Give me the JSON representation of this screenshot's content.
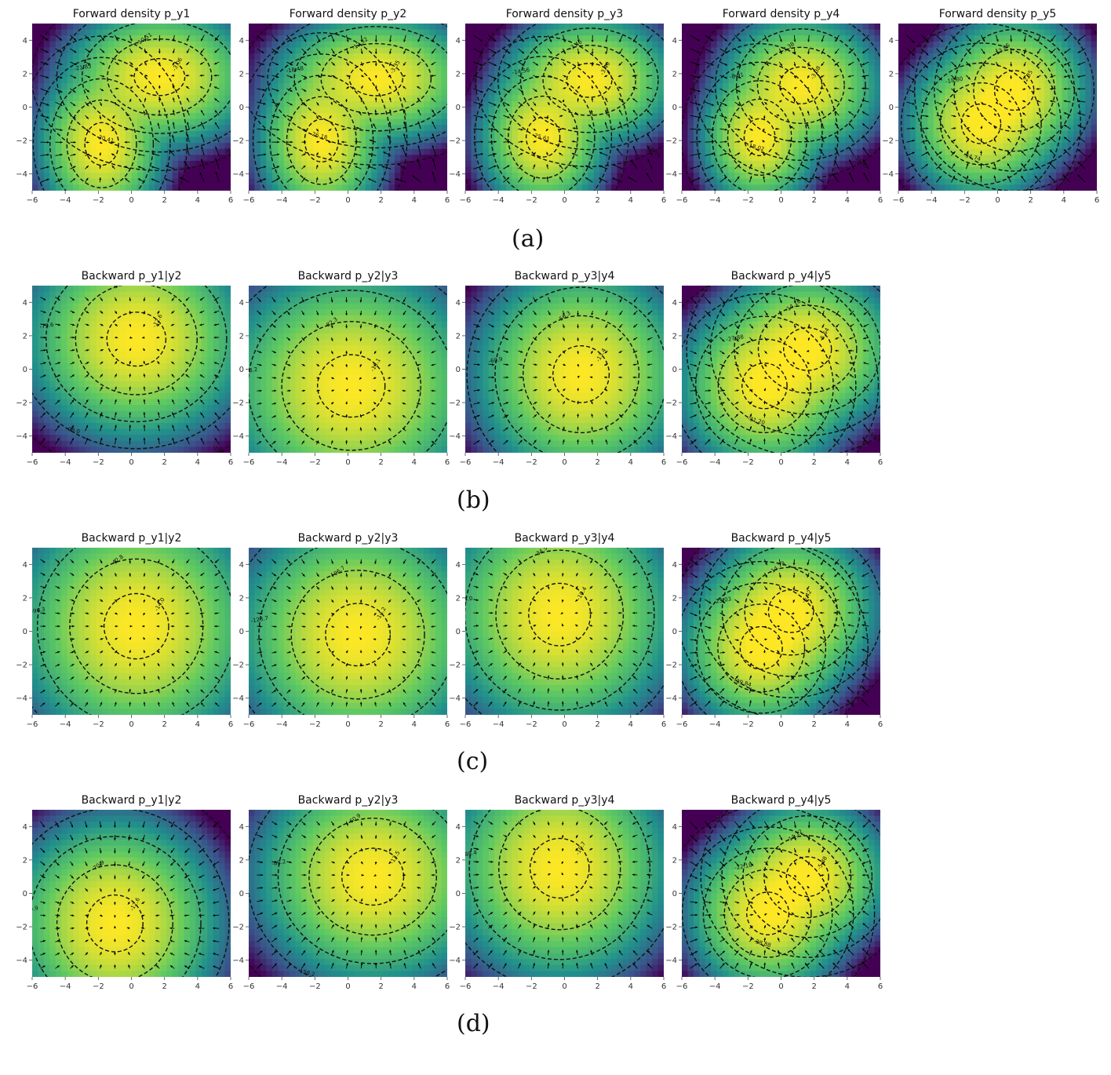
{
  "rows": [
    {
      "caption": "(a)",
      "titles": [
        "Forward density p_y1",
        "Forward density p_y2",
        "Forward density p_y3",
        "Forward density p_y4",
        "Forward density p_y5"
      ]
    },
    {
      "caption": "(b)",
      "titles": [
        "Backward p_y1|y2",
        "Backward p_y2|y3",
        "Backward p_y3|y4",
        "Backward p_y4|y5"
      ]
    },
    {
      "caption": "(c)",
      "titles": [
        "Backward p_y1|y2",
        "Backward p_y2|y3",
        "Backward p_y3|y4",
        "Backward p_y4|y5"
      ]
    },
    {
      "caption": "(d)",
      "titles": [
        "Backward p_y1|y2",
        "Backward p_y2|y3",
        "Backward p_y3|y4",
        "Backward p_y4|y5"
      ]
    }
  ],
  "chart_data": [
    {
      "type": "heatmap",
      "title": "Forward density p_y1",
      "xlim": [
        -6,
        6
      ],
      "ylim": [
        -5,
        5
      ],
      "x_ticks": [
        -6,
        -4,
        -2,
        0,
        2,
        4,
        6
      ],
      "y_ticks": [
        -4,
        -2,
        0,
        2,
        4
      ],
      "modes": [
        {
          "center": [
            1.7,
            1.8
          ],
          "spread": [
            1.8,
            1.3
          ]
        },
        {
          "center": [
            -1.8,
            -2.2
          ],
          "spread": [
            1.2,
            1.5
          ]
        }
      ],
      "contour_labels": [
        "-3.06",
        "-10.51",
        "-21.85",
        "-30.41",
        "-39.34",
        "-46.30",
        "-56.98"
      ],
      "vector_field": "gradient arrows"
    },
    {
      "type": "heatmap",
      "title": "Forward density p_y2",
      "xlim": [
        -6,
        6
      ],
      "ylim": [
        -5,
        5
      ],
      "x_ticks": [
        -6,
        -4,
        -2,
        0,
        2,
        4,
        6
      ],
      "y_ticks": [
        -4,
        -2,
        0,
        2,
        4
      ],
      "modes": [
        {
          "center": [
            1.7,
            1.7
          ],
          "spread": [
            1.9,
            1.2
          ]
        },
        {
          "center": [
            -1.6,
            -2.0
          ],
          "spread": [
            1.2,
            1.5
          ]
        }
      ],
      "contour_labels": [
        "-3.35",
        "-12.52",
        "-18.48",
        "-26.18",
        "-29.16",
        "-41.95"
      ],
      "vector_field": "gradient arrows"
    },
    {
      "type": "heatmap",
      "title": "Forward density p_y3",
      "xlim": [
        -6,
        6
      ],
      "ylim": [
        -5,
        5
      ],
      "x_ticks": [
        -6,
        -4,
        -2,
        0,
        2,
        4,
        6
      ],
      "y_ticks": [
        -4,
        -2,
        0,
        2,
        4
      ],
      "modes": [
        {
          "center": [
            1.5,
            1.6
          ],
          "spread": [
            1.6,
            1.2
          ]
        },
        {
          "center": [
            -1.3,
            -1.8
          ],
          "spread": [
            1.2,
            1.4
          ]
        }
      ],
      "contour_labels": [
        "-3.46",
        "-3.46",
        "-14.56",
        "-25.61",
        "-36.76"
      ],
      "vector_field": "gradient arrows"
    },
    {
      "type": "heatmap",
      "title": "Forward density p_y4",
      "xlim": [
        -6,
        6
      ],
      "ylim": [
        -5,
        5
      ],
      "x_ticks": [
        -6,
        -4,
        -2,
        0,
        2,
        4,
        6
      ],
      "y_ticks": [
        -4,
        -2,
        0,
        2,
        4
      ],
      "modes": [
        {
          "center": [
            1.2,
            1.3
          ],
          "spread": [
            1.5,
            1.3
          ]
        },
        {
          "center": [
            -1.3,
            -1.8
          ],
          "spread": [
            1.1,
            1.3
          ]
        }
      ],
      "contour_labels": [
        "-3.38",
        "-3.38",
        "-8.91",
        "-18.02",
        "-26.65"
      ],
      "vector_field": "gradient arrows"
    },
    {
      "type": "heatmap",
      "title": "Forward density p_y5",
      "xlim": [
        -6,
        6
      ],
      "ylim": [
        -5,
        5
      ],
      "x_ticks": [
        -6,
        -4,
        -2,
        0,
        2,
        4,
        6
      ],
      "y_ticks": [
        -4,
        -2,
        0,
        2,
        4
      ],
      "modes": [
        {
          "center": [
            1.0,
            1.0
          ],
          "spread": [
            1.4,
            1.4
          ]
        },
        {
          "center": [
            -1.0,
            -1.0
          ],
          "spread": [
            1.4,
            1.4
          ]
        }
      ],
      "contour_labels": [
        "-2.35",
        "-13.86",
        "-18.80",
        "-34.74"
      ],
      "vector_field": "gradient arrows"
    },
    {
      "type": "heatmap",
      "title": "Backward p_y1|y2",
      "xlim": [
        -6,
        6
      ],
      "ylim": [
        -5,
        5
      ],
      "x_ticks": [
        -6,
        -4,
        -2,
        0,
        2,
        4,
        6
      ],
      "y_ticks": [
        -4,
        -2,
        0,
        2,
        4
      ],
      "modes": [
        {
          "center": [
            0.3,
            1.8
          ],
          "spread": [
            2.1,
            1.9
          ]
        }
      ],
      "contour_labels": [
        "-12.6",
        "-55.9",
        "-79.6",
        "-98.0",
        "-104.3"
      ],
      "vector_field": "gradient arrows"
    },
    {
      "type": "heatmap",
      "title": "Backward p_y2|y3",
      "xlim": [
        -6,
        6
      ],
      "ylim": [
        -5,
        5
      ],
      "x_ticks": [
        -6,
        -4,
        -2,
        0,
        2,
        4,
        6
      ],
      "y_ticks": [
        -4,
        -2,
        0,
        2,
        4
      ],
      "modes": [
        {
          "center": [
            0.2,
            -1.0
          ],
          "spread": [
            2.4,
            2.2
          ]
        }
      ],
      "contour_labels": [
        "-13.1",
        "-82.3",
        "-108.2"
      ],
      "vector_field": "gradient arrows"
    },
    {
      "type": "heatmap",
      "title": "Backward p_y3|y4",
      "xlim": [
        -6,
        6
      ],
      "ylim": [
        -5,
        5
      ],
      "x_ticks": [
        -6,
        -4,
        -2,
        0,
        2,
        4,
        6
      ],
      "y_ticks": [
        -4,
        -2,
        0,
        2,
        4
      ],
      "modes": [
        {
          "center": [
            1.0,
            -0.3
          ],
          "spread": [
            2.0,
            2.0
          ]
        }
      ],
      "contour_labels": [
        "-13.4",
        "-56.3",
        "-60.9"
      ],
      "vector_field": "gradient arrows"
    },
    {
      "type": "heatmap",
      "title": "Backward p_y4|y5",
      "xlim": [
        -6,
        6
      ],
      "ylim": [
        -5,
        5
      ],
      "x_ticks": [
        -6,
        -4,
        -2,
        0,
        2,
        4,
        6
      ],
      "y_ticks": [
        -4,
        -2,
        0,
        2,
        4
      ],
      "modes": [
        {
          "center": [
            1.6,
            1.2
          ],
          "spread": [
            1.7,
            1.5
          ]
        },
        {
          "center": [
            -1.0,
            -1.0
          ],
          "spread": [
            1.6,
            1.6
          ]
        }
      ],
      "contour_labels": [
        "-5.64",
        "-14.16",
        "-27.88",
        "-31.20",
        "-40.24"
      ],
      "vector_field": "gradient arrows"
    },
    {
      "type": "heatmap",
      "title": "Backward p_y1|y2",
      "xlim": [
        -6,
        6
      ],
      "ylim": [
        -5,
        5
      ],
      "x_ticks": [
        -6,
        -4,
        -2,
        0,
        2,
        4,
        6
      ],
      "y_ticks": [
        -4,
        -2,
        0,
        2,
        4
      ],
      "modes": [
        {
          "center": [
            0.3,
            0.3
          ],
          "spread": [
            2.3,
            2.3
          ]
        }
      ],
      "contour_labels": [
        "-14.0",
        "-42.8",
        "-96.3",
        "-124.5"
      ],
      "vector_field": "gradient arrows"
    },
    {
      "type": "heatmap",
      "title": "Backward p_y2|y3",
      "xlim": [
        -6,
        6
      ],
      "ylim": [
        -5,
        5
      ],
      "x_ticks": [
        -6,
        -4,
        -2,
        0,
        2,
        4,
        6
      ],
      "y_ticks": [
        -4,
        -2,
        0,
        2,
        4
      ],
      "modes": [
        {
          "center": [
            0.6,
            -0.2
          ],
          "spread": [
            2.3,
            2.2
          ]
        }
      ],
      "contour_labels": [
        "-14.2",
        "-96.7",
        "-123.7"
      ],
      "vector_field": "gradient arrows"
    },
    {
      "type": "heatmap",
      "title": "Backward p_y3|y4",
      "xlim": [
        -6,
        6
      ],
      "ylim": [
        -5,
        5
      ],
      "x_ticks": [
        -6,
        -4,
        -2,
        0,
        2,
        4,
        6
      ],
      "y_ticks": [
        -4,
        -2,
        0,
        2,
        4
      ],
      "modes": [
        {
          "center": [
            -0.3,
            1.0
          ],
          "spread": [
            2.2,
            2.2
          ]
        }
      ],
      "contour_labels": [
        "-10.4",
        "-34.5",
        "-64.0"
      ],
      "vector_field": "gradient arrows"
    },
    {
      "type": "heatmap",
      "title": "Backward p_y4|y5",
      "xlim": [
        -6,
        6
      ],
      "ylim": [
        -5,
        5
      ],
      "x_ticks": [
        -6,
        -4,
        -2,
        0,
        2,
        4,
        6
      ],
      "y_ticks": [
        -4,
        -2,
        0,
        2,
        4
      ],
      "modes": [
        {
          "center": [
            0.6,
            1.2
          ],
          "spread": [
            1.6,
            1.5
          ]
        },
        {
          "center": [
            -1.2,
            -1.0
          ],
          "spread": [
            1.5,
            1.5
          ]
        }
      ],
      "contour_labels": [
        "-6.42",
        "-14.73",
        "-23.03",
        "-39.84"
      ],
      "vector_field": "gradient arrows"
    },
    {
      "type": "heatmap",
      "title": "Backward p_y1|y2",
      "xlim": [
        -6,
        6
      ],
      "ylim": [
        -5,
        5
      ],
      "x_ticks": [
        -6,
        -4,
        -2,
        0,
        2,
        4,
        6
      ],
      "y_ticks": [
        -4,
        -2,
        0,
        2,
        4
      ],
      "modes": [
        {
          "center": [
            -1.0,
            -1.8
          ],
          "spread": [
            2.0,
            2.0
          ]
        }
      ],
      "contour_labels": [
        "-12.6",
        "-70.9",
        "-100.9",
        "-124.6"
      ],
      "vector_field": "gradient arrows"
    },
    {
      "type": "heatmap",
      "title": "Backward p_y2|y3",
      "xlim": [
        -6,
        6
      ],
      "ylim": [
        -5,
        5
      ],
      "x_ticks": [
        -6,
        -4,
        -2,
        0,
        2,
        4,
        6
      ],
      "y_ticks": [
        -4,
        -2,
        0,
        2,
        4
      ],
      "modes": [
        {
          "center": [
            1.5,
            1.0
          ],
          "spread": [
            2.2,
            2.0
          ]
        }
      ],
      "contour_labels": [
        "-13.5",
        "-60.9",
        "-88.2",
        "-158.2"
      ],
      "vector_field": "gradient arrows"
    },
    {
      "type": "heatmap",
      "title": "Backward p_y3|y4",
      "xlim": [
        -6,
        6
      ],
      "ylim": [
        -5,
        5
      ],
      "x_ticks": [
        -6,
        -4,
        -2,
        0,
        2,
        4,
        6
      ],
      "y_ticks": [
        -4,
        -2,
        0,
        2,
        4
      ],
      "modes": [
        {
          "center": [
            -0.3,
            1.5
          ],
          "spread": [
            2.1,
            2.1
          ]
        }
      ],
      "contour_labels": [
        "-10.7",
        "-35.8",
        "-88.4"
      ],
      "vector_field": "gradient arrows"
    },
    {
      "type": "heatmap",
      "title": "Backward p_y4|y5",
      "xlim": [
        -6,
        6
      ],
      "ylim": [
        -5,
        5
      ],
      "x_ticks": [
        -6,
        -4,
        -2,
        0,
        2,
        4,
        6
      ],
      "y_ticks": [
        -4,
        -2,
        0,
        2,
        4
      ],
      "modes": [
        {
          "center": [
            1.6,
            1.0
          ],
          "spread": [
            1.5,
            1.4
          ]
        },
        {
          "center": [
            -0.8,
            -1.2
          ],
          "spread": [
            1.5,
            1.5
          ]
        }
      ],
      "contour_labels": [
        "-5.88",
        "-14.12",
        "-22.18",
        "-38.88"
      ],
      "vector_field": "gradient arrows"
    }
  ]
}
